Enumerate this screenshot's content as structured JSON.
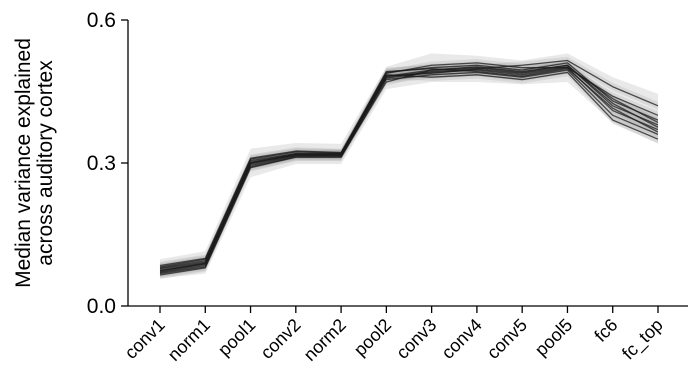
{
  "chart_data": {
    "type": "line",
    "title": "",
    "xlabel": "",
    "ylabel_lines": [
      "Median variance explained",
      "across auditory cortex"
    ],
    "categories": [
      "conv1",
      "norm1",
      "pool1",
      "conv2",
      "norm2",
      "pool2",
      "conv3",
      "conv4",
      "conv5",
      "pool5",
      "fc6",
      "fc_top"
    ],
    "ylim": [
      0.0,
      0.6
    ],
    "yticks": [
      0.0,
      0.3,
      0.6
    ],
    "ytick_labels": [
      "0.0",
      "0.3",
      "0.6"
    ],
    "grid": false,
    "legend": "none",
    "line_color": "#1a1a1a",
    "band_color": "#9a9a9a",
    "series": [
      {
        "values": [
          0.075,
          0.09,
          0.3,
          0.318,
          0.318,
          0.482,
          0.495,
          0.5,
          0.49,
          0.505,
          0.42,
          0.38
        ]
      },
      {
        "values": [
          0.07,
          0.085,
          0.295,
          0.315,
          0.315,
          0.478,
          0.49,
          0.495,
          0.485,
          0.5,
          0.41,
          0.37
        ]
      },
      {
        "values": [
          0.08,
          0.095,
          0.305,
          0.32,
          0.32,
          0.49,
          0.5,
          0.505,
          0.495,
          0.51,
          0.43,
          0.39
        ]
      },
      {
        "values": [
          0.065,
          0.08,
          0.29,
          0.312,
          0.312,
          0.475,
          0.485,
          0.49,
          0.48,
          0.495,
          0.4,
          0.36
        ]
      },
      {
        "values": [
          0.085,
          0.1,
          0.31,
          0.325,
          0.322,
          0.488,
          0.505,
          0.51,
          0.5,
          0.5,
          0.44,
          0.4
        ]
      },
      {
        "values": [
          0.072,
          0.088,
          0.298,
          0.316,
          0.316,
          0.48,
          0.492,
          0.498,
          0.505,
          0.515,
          0.46,
          0.42
        ]
      },
      {
        "values": [
          0.078,
          0.092,
          0.302,
          0.319,
          0.319,
          0.485,
          0.48,
          0.485,
          0.475,
          0.49,
          0.39,
          0.35
        ]
      },
      {
        "values": [
          0.068,
          0.082,
          0.292,
          0.313,
          0.313,
          0.47,
          0.495,
          0.502,
          0.492,
          0.505,
          0.425,
          0.375
        ]
      },
      {
        "values": [
          0.082,
          0.098,
          0.308,
          0.323,
          0.321,
          0.492,
          0.498,
          0.492,
          0.482,
          0.498,
          0.415,
          0.365
        ]
      },
      {
        "values": [
          0.074,
          0.089,
          0.3,
          0.317,
          0.317,
          0.483,
          0.488,
          0.497,
          0.488,
          0.502,
          0.435,
          0.385
        ]
      }
    ],
    "band": {
      "lower": [
        0.058,
        0.068,
        0.27,
        0.298,
        0.298,
        0.455,
        0.47,
        0.47,
        0.465,
        0.47,
        0.385,
        0.34
      ],
      "upper": [
        0.098,
        0.115,
        0.33,
        0.342,
        0.34,
        0.502,
        0.53,
        0.525,
        0.515,
        0.53,
        0.48,
        0.445
      ]
    }
  }
}
